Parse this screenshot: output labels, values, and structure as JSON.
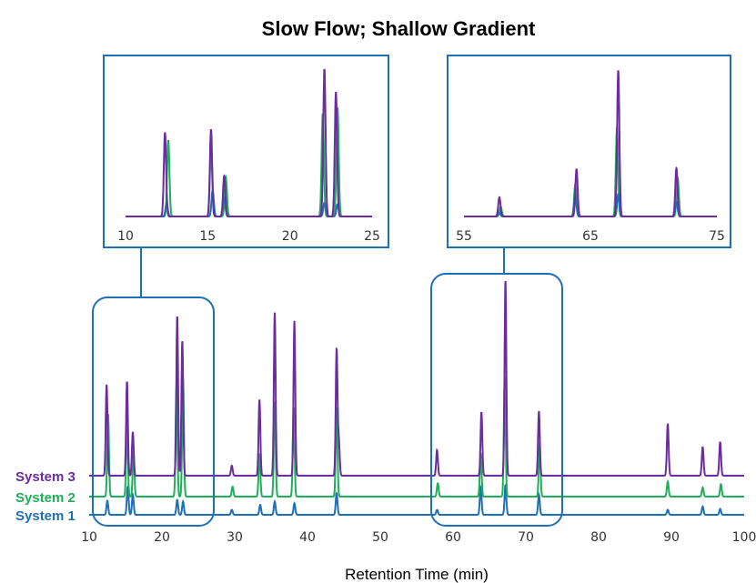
{
  "chart_data": {
    "type": "line",
    "title": "Slow Flow; Shallow Gradient",
    "xlabel": "Retention Time (min)",
    "ylabel": "",
    "xlim": [
      10,
      100
    ],
    "xticks": [
      10,
      20,
      30,
      40,
      50,
      60,
      70,
      80,
      90,
      100
    ],
    "xtick_labels": [
      "10",
      "20",
      "30",
      "40",
      "50",
      "60",
      "70",
      "80",
      "90",
      "100"
    ],
    "grid": false,
    "legend": "left, series labels at baselines",
    "series": [
      {
        "name": "System 1",
        "color": "#1f6fb5",
        "peaks": [
          {
            "t": 12.5,
            "h": 0.17
          },
          {
            "t": 15.3,
            "h": 0.34
          },
          {
            "t": 16.0,
            "h": 0.24
          },
          {
            "t": 22.1,
            "h": 0.18
          },
          {
            "t": 22.9,
            "h": 0.16
          },
          {
            "t": 29.6,
            "h": 0.06
          },
          {
            "t": 33.5,
            "h": 0.12
          },
          {
            "t": 35.5,
            "h": 0.16
          },
          {
            "t": 38.2,
            "h": 0.14
          },
          {
            "t": 44.0,
            "h": 0.26
          },
          {
            "t": 57.8,
            "h": 0.06
          },
          {
            "t": 63.8,
            "h": 0.34
          },
          {
            "t": 67.2,
            "h": 0.36
          },
          {
            "t": 71.8,
            "h": 0.24
          },
          {
            "t": 89.5,
            "h": 0.06
          },
          {
            "t": 94.3,
            "h": 0.1
          },
          {
            "t": 96.7,
            "h": 0.07
          }
        ]
      },
      {
        "name": "System 2",
        "color": "#1fae5a",
        "peaks": [
          {
            "t": 12.6,
            "h": 1.0
          },
          {
            "t": 15.2,
            "h": 0.9
          },
          {
            "t": 16.1,
            "h": 0.52
          },
          {
            "t": 22.0,
            "h": 1.35
          },
          {
            "t": 22.9,
            "h": 1.43
          },
          {
            "t": 29.7,
            "h": 0.12
          },
          {
            "t": 33.4,
            "h": 0.52
          },
          {
            "t": 35.5,
            "h": 1.15
          },
          {
            "t": 38.1,
            "h": 1.08
          },
          {
            "t": 44.0,
            "h": 1.08
          },
          {
            "t": 57.9,
            "h": 0.16
          },
          {
            "t": 63.8,
            "h": 0.52
          },
          {
            "t": 67.1,
            "h": 1.45
          },
          {
            "t": 71.9,
            "h": 0.62
          },
          {
            "t": 89.5,
            "h": 0.18
          },
          {
            "t": 94.3,
            "h": 0.11
          },
          {
            "t": 96.8,
            "h": 0.15
          }
        ]
      },
      {
        "name": "System 3",
        "color": "#6b2d9e",
        "peaks": [
          {
            "t": 12.4,
            "h": 1.1
          },
          {
            "t": 15.2,
            "h": 1.14
          },
          {
            "t": 16.0,
            "h": 0.53
          },
          {
            "t": 22.1,
            "h": 1.93
          },
          {
            "t": 22.8,
            "h": 1.63
          },
          {
            "t": 29.6,
            "h": 0.12
          },
          {
            "t": 33.4,
            "h": 0.92
          },
          {
            "t": 35.5,
            "h": 1.97
          },
          {
            "t": 38.2,
            "h": 1.87
          },
          {
            "t": 44.0,
            "h": 1.52
          },
          {
            "t": 44.3,
            "h": 0.42
          },
          {
            "t": 57.8,
            "h": 0.31
          },
          {
            "t": 63.9,
            "h": 0.77
          },
          {
            "t": 67.2,
            "h": 2.36
          },
          {
            "t": 71.8,
            "h": 0.78
          },
          {
            "t": 89.5,
            "h": 0.63
          },
          {
            "t": 94.3,
            "h": 0.35
          },
          {
            "t": 96.7,
            "h": 0.41
          }
        ]
      }
    ],
    "insets": [
      {
        "xlim": [
          10,
          25
        ],
        "xticks": [
          10,
          15,
          20,
          25
        ],
        "xtick_labels": [
          "10",
          "15",
          "20",
          "25"
        ]
      },
      {
        "xlim": [
          55,
          75
        ],
        "xticks": [
          55,
          65,
          75
        ],
        "xtick_labels": [
          "55",
          "65",
          "75"
        ]
      }
    ],
    "annotations": [
      {
        "type": "callout",
        "range": [
          10,
          27
        ]
      },
      {
        "type": "callout",
        "range": [
          57,
          74
        ]
      }
    ]
  }
}
